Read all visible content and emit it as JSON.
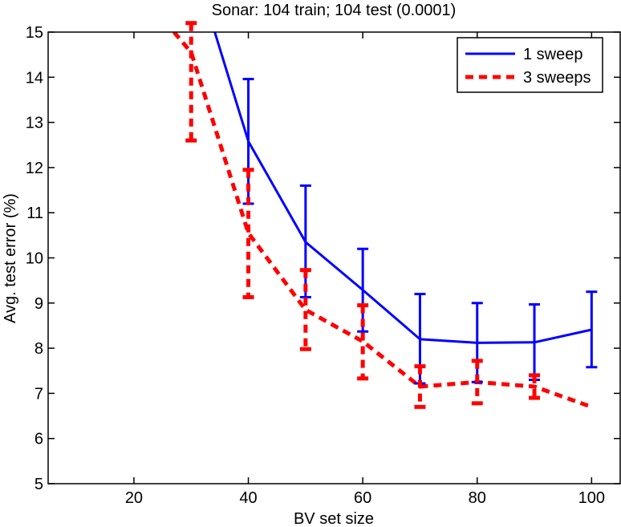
{
  "chart_data": {
    "type": "line",
    "title": "Sonar: 104 train; 104 test (0.0001)",
    "xlabel": "BV set size",
    "ylabel": "Avg. test error (%)",
    "xlim": [
      5,
      105
    ],
    "ylim": [
      5,
      15
    ],
    "xticks": [
      20,
      40,
      60,
      80,
      100
    ],
    "yticks": [
      5,
      6,
      7,
      8,
      9,
      10,
      11,
      12,
      13,
      14,
      15
    ],
    "grid": false,
    "legend_position": "top-right",
    "series": [
      {
        "name": "1 sweep",
        "color": "#0000ff",
        "style": "solid",
        "x": [
          30,
          40,
          50,
          60,
          70,
          80,
          90,
          100
        ],
        "y": [
          16.7,
          12.58,
          10.35,
          9.29,
          8.2,
          8.12,
          8.13,
          8.41
        ],
        "err_low": [
          null,
          11.2,
          9.13,
          8.37,
          7.22,
          7.25,
          7.3,
          7.58
        ],
        "err_high": [
          null,
          13.96,
          11.6,
          10.2,
          9.2,
          9.0,
          8.97,
          9.25
        ]
      },
      {
        "name": "3 sweeps",
        "color": "#ff0000",
        "style": "dashed",
        "x": [
          27,
          30,
          40,
          50,
          60,
          70,
          80,
          90,
          100
        ],
        "y": [
          15.0,
          14.55,
          10.55,
          8.85,
          8.15,
          7.15,
          7.25,
          7.15,
          6.7
        ],
        "err_low": [
          null,
          12.6,
          9.13,
          7.98,
          7.33,
          6.7,
          6.78,
          6.9,
          null
        ],
        "err_high": [
          null,
          15.2,
          11.95,
          9.73,
          8.95,
          7.6,
          7.72,
          7.4,
          null
        ]
      }
    ]
  }
}
